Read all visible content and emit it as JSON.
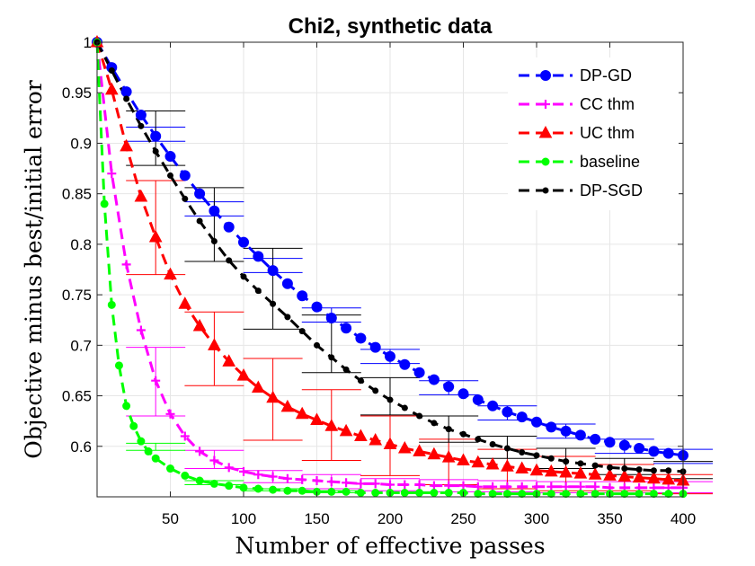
{
  "chart_data": {
    "type": "line",
    "title": "Chi2, synthetic data",
    "xlabel": "Number of effective passes",
    "ylabel": "Objective minus best/initial error",
    "xlim": [
      0,
      400
    ],
    "ylim": [
      0.55,
      1.0
    ],
    "xticks": [
      50,
      100,
      150,
      200,
      250,
      300,
      350,
      400
    ],
    "yticks": [
      0.6,
      0.65,
      0.7,
      0.75,
      0.8,
      0.85,
      0.9,
      0.95,
      1
    ],
    "grid": true,
    "legend_position": "top-right",
    "series": [
      {
        "name": "DP-GD",
        "color": "#0000ff",
        "marker": "circle",
        "x": [
          0,
          10,
          20,
          30,
          40,
          50,
          60,
          70,
          80,
          90,
          100,
          110,
          120,
          130,
          140,
          150,
          160,
          170,
          180,
          190,
          200,
          210,
          220,
          230,
          240,
          250,
          260,
          270,
          280,
          290,
          300,
          310,
          320,
          330,
          340,
          350,
          360,
          370,
          380,
          390,
          400
        ],
        "y": [
          1.0,
          0.975,
          0.951,
          0.928,
          0.907,
          0.887,
          0.868,
          0.85,
          0.833,
          0.817,
          0.802,
          0.788,
          0.774,
          0.761,
          0.749,
          0.738,
          0.727,
          0.717,
          0.707,
          0.698,
          0.689,
          0.681,
          0.673,
          0.666,
          0.659,
          0.652,
          0.646,
          0.64,
          0.634,
          0.629,
          0.624,
          0.619,
          0.615,
          0.611,
          0.607,
          0.604,
          0.601,
          0.598,
          0.595,
          0.593,
          0.591
        ],
        "error_bars": [
          {
            "x": 40,
            "lo": 0.902,
            "hi": 0.916
          },
          {
            "x": 80,
            "lo": 0.828,
            "hi": 0.842
          },
          {
            "x": 120,
            "lo": 0.772,
            "hi": 0.786
          },
          {
            "x": 160,
            "lo": 0.723,
            "hi": 0.737
          },
          {
            "x": 200,
            "lo": 0.682,
            "hi": 0.696
          },
          {
            "x": 240,
            "lo": 0.651,
            "hi": 0.665
          },
          {
            "x": 280,
            "lo": 0.626,
            "hi": 0.64
          },
          {
            "x": 320,
            "lo": 0.608,
            "hi": 0.622
          },
          {
            "x": 360,
            "lo": 0.593,
            "hi": 0.607
          },
          {
            "x": 400,
            "lo": 0.583,
            "hi": 0.597
          }
        ]
      },
      {
        "name": "CC thm",
        "color": "#ff00ff",
        "marker": "plus",
        "x": [
          0,
          10,
          20,
          30,
          40,
          50,
          60,
          70,
          80,
          90,
          100,
          110,
          120,
          130,
          140,
          150,
          160,
          170,
          180,
          190,
          200,
          210,
          220,
          230,
          240,
          250,
          260,
          270,
          280,
          290,
          300,
          310,
          320,
          330,
          340,
          350,
          360,
          370,
          380,
          390,
          400
        ],
        "y": [
          1.0,
          0.87,
          0.78,
          0.715,
          0.665,
          0.632,
          0.61,
          0.595,
          0.586,
          0.579,
          0.575,
          0.572,
          0.57,
          0.568,
          0.567,
          0.566,
          0.565,
          0.564,
          0.563,
          0.563,
          0.562,
          0.562,
          0.562,
          0.561,
          0.561,
          0.561,
          0.56,
          0.56,
          0.56,
          0.56,
          0.56,
          0.56,
          0.56,
          0.56,
          0.56,
          0.559,
          0.559,
          0.559,
          0.559,
          0.559,
          0.559
        ],
        "error_bars": [
          {
            "x": 40,
            "lo": 0.63,
            "hi": 0.698
          },
          {
            "x": 80,
            "lo": 0.578,
            "hi": 0.596
          },
          {
            "x": 120,
            "lo": 0.564,
            "hi": 0.576
          },
          {
            "x": 160,
            "lo": 0.558,
            "hi": 0.572
          },
          {
            "x": 200,
            "lo": 0.556,
            "hi": 0.568
          },
          {
            "x": 240,
            "lo": 0.555,
            "hi": 0.567
          },
          {
            "x": 280,
            "lo": 0.555,
            "hi": 0.566
          },
          {
            "x": 320,
            "lo": 0.554,
            "hi": 0.565
          },
          {
            "x": 360,
            "lo": 0.554,
            "hi": 0.565
          },
          {
            "x": 400,
            "lo": 0.554,
            "hi": 0.565
          }
        ]
      },
      {
        "name": "UC thm",
        "color": "#ff0000",
        "marker": "triangle",
        "x": [
          0,
          10,
          20,
          30,
          40,
          50,
          60,
          70,
          80,
          90,
          100,
          110,
          120,
          130,
          140,
          150,
          160,
          170,
          180,
          190,
          200,
          210,
          220,
          230,
          240,
          250,
          260,
          270,
          280,
          290,
          300,
          310,
          320,
          330,
          340,
          350,
          360,
          370,
          380,
          390,
          400
        ],
        "y": [
          1.0,
          0.953,
          0.897,
          0.847,
          0.807,
          0.77,
          0.741,
          0.719,
          0.7,
          0.684,
          0.67,
          0.658,
          0.648,
          0.639,
          0.632,
          0.626,
          0.62,
          0.615,
          0.61,
          0.606,
          0.602,
          0.598,
          0.595,
          0.592,
          0.589,
          0.586,
          0.584,
          0.582,
          0.58,
          0.578,
          0.576,
          0.575,
          0.574,
          0.573,
          0.572,
          0.571,
          0.57,
          0.569,
          0.568,
          0.567,
          0.566
        ],
        "error_bars": [
          {
            "x": 40,
            "lo": 0.77,
            "hi": 0.863
          },
          {
            "x": 80,
            "lo": 0.66,
            "hi": 0.733
          },
          {
            "x": 120,
            "lo": 0.606,
            "hi": 0.687
          },
          {
            "x": 160,
            "lo": 0.586,
            "hi": 0.656
          },
          {
            "x": 200,
            "lo": 0.571,
            "hi": 0.63
          },
          {
            "x": 240,
            "lo": 0.562,
            "hi": 0.607
          },
          {
            "x": 280,
            "lo": 0.558,
            "hi": 0.597
          },
          {
            "x": 320,
            "lo": 0.556,
            "hi": 0.59
          },
          {
            "x": 360,
            "lo": 0.556,
            "hi": 0.582
          },
          {
            "x": 400,
            "lo": 0.553,
            "hi": 0.572
          }
        ]
      },
      {
        "name": "baseline",
        "color": "#00ff00",
        "marker": "circle-small",
        "x": [
          0,
          5,
          10,
          15,
          20,
          25,
          30,
          35,
          40,
          50,
          60,
          70,
          80,
          90,
          100,
          110,
          120,
          130,
          140,
          150,
          160,
          170,
          180,
          190,
          200,
          210,
          220,
          230,
          240,
          250,
          260,
          270,
          280,
          290,
          300,
          310,
          320,
          330,
          340,
          350,
          360,
          370,
          380,
          390,
          400
        ],
        "y": [
          1.0,
          0.84,
          0.74,
          0.68,
          0.64,
          0.62,
          0.605,
          0.595,
          0.588,
          0.578,
          0.571,
          0.566,
          0.563,
          0.561,
          0.559,
          0.558,
          0.557,
          0.556,
          0.556,
          0.555,
          0.555,
          0.555,
          0.554,
          0.554,
          0.554,
          0.554,
          0.554,
          0.554,
          0.554,
          0.554,
          0.553,
          0.553,
          0.553,
          0.553,
          0.553,
          0.553,
          0.553,
          0.553,
          0.553,
          0.553,
          0.553,
          0.553,
          0.553,
          0.553,
          0.553
        ],
        "error_bars": [
          {
            "x": 40,
            "lo": 0.596,
            "hi": 0.603
          },
          {
            "x": 80,
            "lo": 0.562,
            "hi": 0.566
          },
          {
            "x": 120,
            "lo": 0.556,
            "hi": 0.558
          },
          {
            "x": 160,
            "lo": 0.554,
            "hi": 0.556
          }
        ]
      },
      {
        "name": "DP-SGD",
        "color": "#000000",
        "marker": "dot",
        "x": [
          0,
          10,
          20,
          30,
          40,
          50,
          60,
          70,
          80,
          90,
          100,
          110,
          120,
          130,
          140,
          150,
          160,
          170,
          180,
          190,
          200,
          210,
          220,
          230,
          240,
          250,
          260,
          270,
          280,
          290,
          300,
          310,
          320,
          330,
          340,
          350,
          360,
          370,
          380,
          390,
          400
        ],
        "y": [
          1.0,
          0.972,
          0.944,
          0.917,
          0.892,
          0.868,
          0.845,
          0.823,
          0.803,
          0.784,
          0.768,
          0.754,
          0.741,
          0.728,
          0.714,
          0.7,
          0.688,
          0.676,
          0.665,
          0.655,
          0.646,
          0.638,
          0.63,
          0.623,
          0.617,
          0.612,
          0.607,
          0.602,
          0.598,
          0.594,
          0.591,
          0.588,
          0.585,
          0.583,
          0.581,
          0.579,
          0.578,
          0.577,
          0.576,
          0.576,
          0.575
        ],
        "error_bars": [
          {
            "x": 40,
            "lo": 0.878,
            "hi": 0.932
          },
          {
            "x": 80,
            "lo": 0.783,
            "hi": 0.856
          },
          {
            "x": 120,
            "lo": 0.716,
            "hi": 0.796
          },
          {
            "x": 160,
            "lo": 0.673,
            "hi": 0.73
          },
          {
            "x": 200,
            "lo": 0.631,
            "hi": 0.668
          },
          {
            "x": 240,
            "lo": 0.604,
            "hi": 0.63
          },
          {
            "x": 280,
            "lo": 0.588,
            "hi": 0.61
          },
          {
            "x": 320,
            "lo": 0.578,
            "hi": 0.598
          },
          {
            "x": 360,
            "lo": 0.572,
            "hi": 0.588
          },
          {
            "x": 400,
            "lo": 0.568,
            "hi": 0.585
          }
        ]
      }
    ]
  }
}
